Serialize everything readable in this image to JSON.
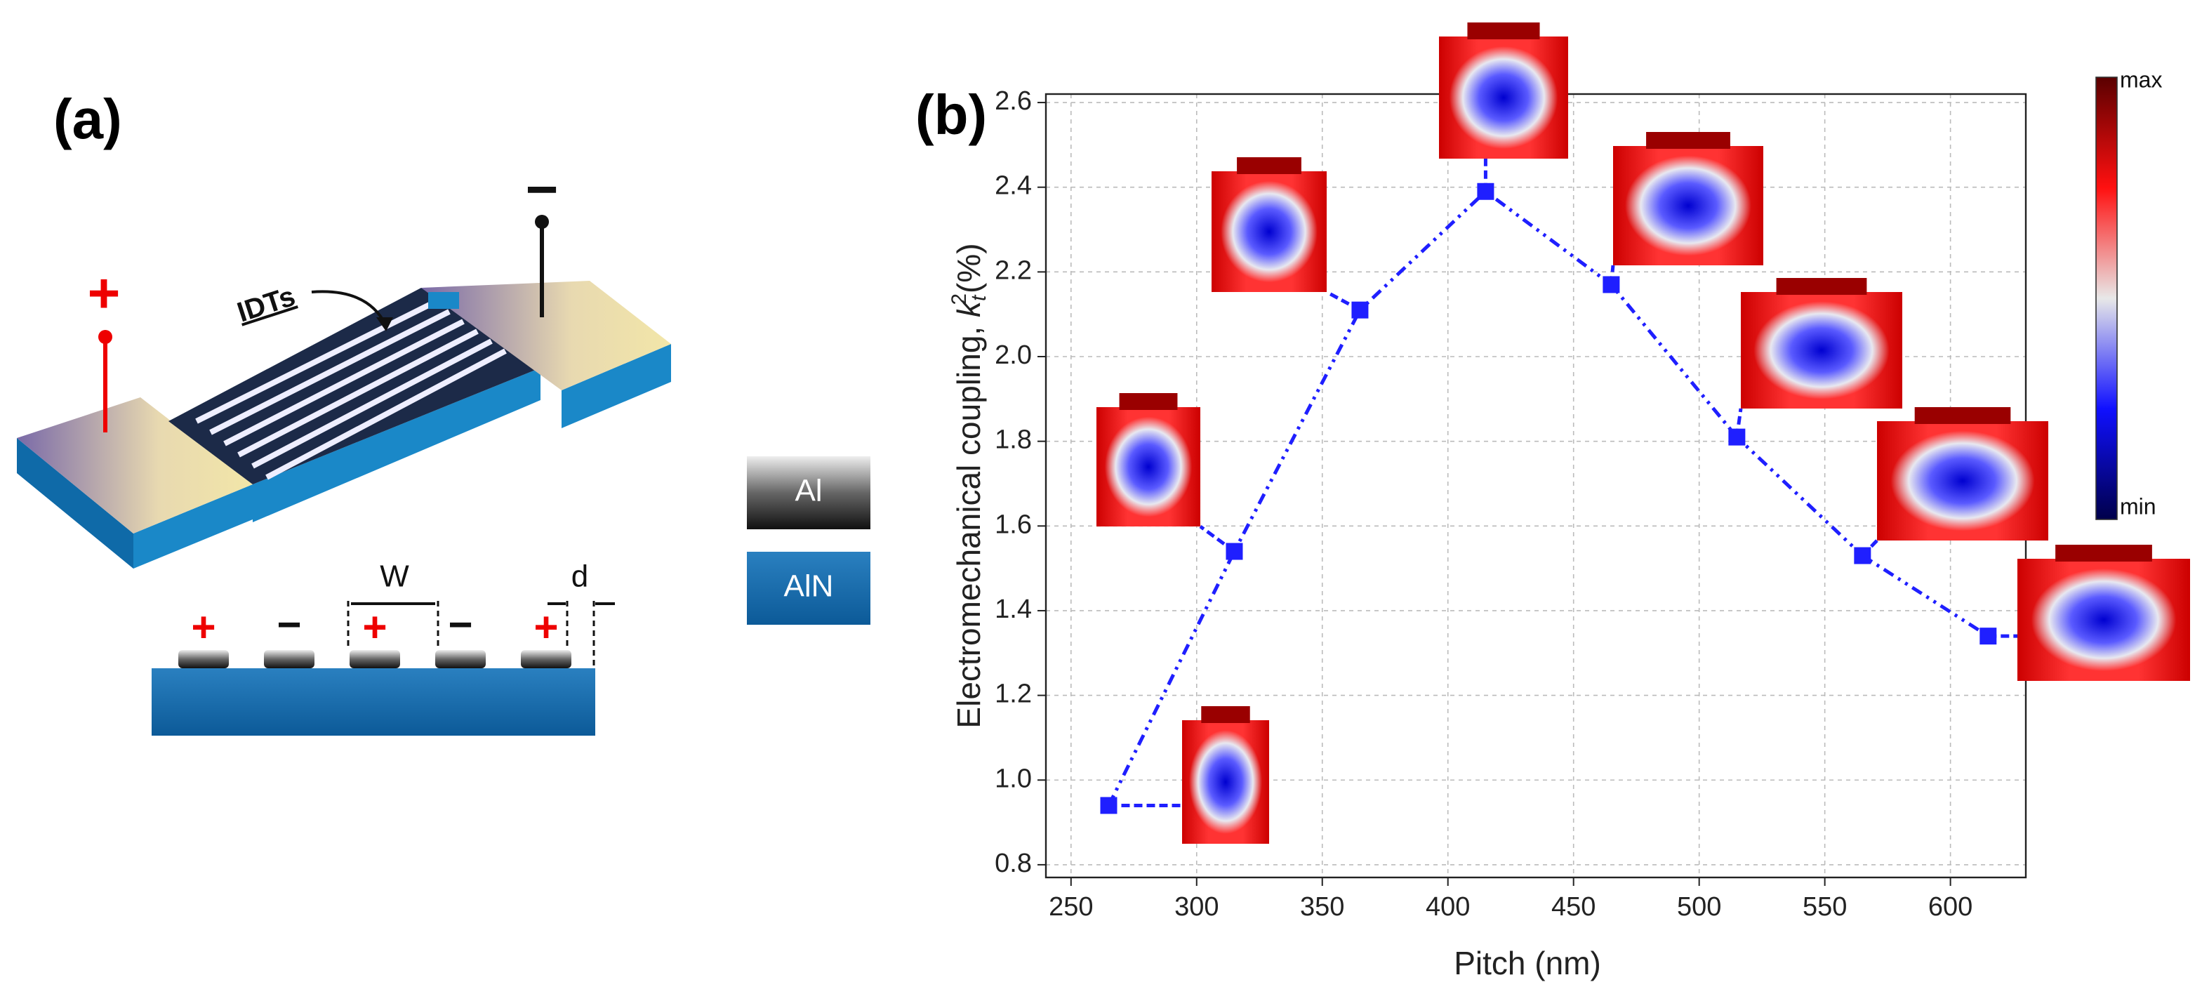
{
  "panel_a": {
    "label": "(a)",
    "plus": "+",
    "minus": "−",
    "idts": "IDTs",
    "w": "W",
    "d": "d",
    "legend": [
      "Al",
      "AlN"
    ]
  },
  "chart_data": {
    "type": "line",
    "label": "(b)",
    "xlabel": "Pitch (nm)",
    "ylabel": {
      "text": "Electromechanical coupling, ",
      "var": "k",
      "sub": "t",
      "sup": "2",
      "unit": "(%)"
    },
    "x": [
      265,
      315,
      365,
      415,
      465,
      515,
      565,
      615
    ],
    "values": [
      0.94,
      1.54,
      2.11,
      2.39,
      2.17,
      1.81,
      1.53,
      1.34
    ],
    "color": "#1f1fff",
    "xlim": [
      240,
      630
    ],
    "xticks": [
      250,
      300,
      350,
      400,
      450,
      500,
      550,
      600
    ],
    "ylim": [
      0.77,
      2.62
    ],
    "yticks": [
      0.8,
      {
        "value": 1,
        "label": "1.0"
      },
      1.2,
      1.4,
      1.6,
      1.8,
      {
        "value": 2,
        "label": "2.0"
      },
      2.2,
      2.4,
      2.6
    ],
    "grid": true,
    "colorbar": {
      "max": "max",
      "min": "min"
    }
  }
}
